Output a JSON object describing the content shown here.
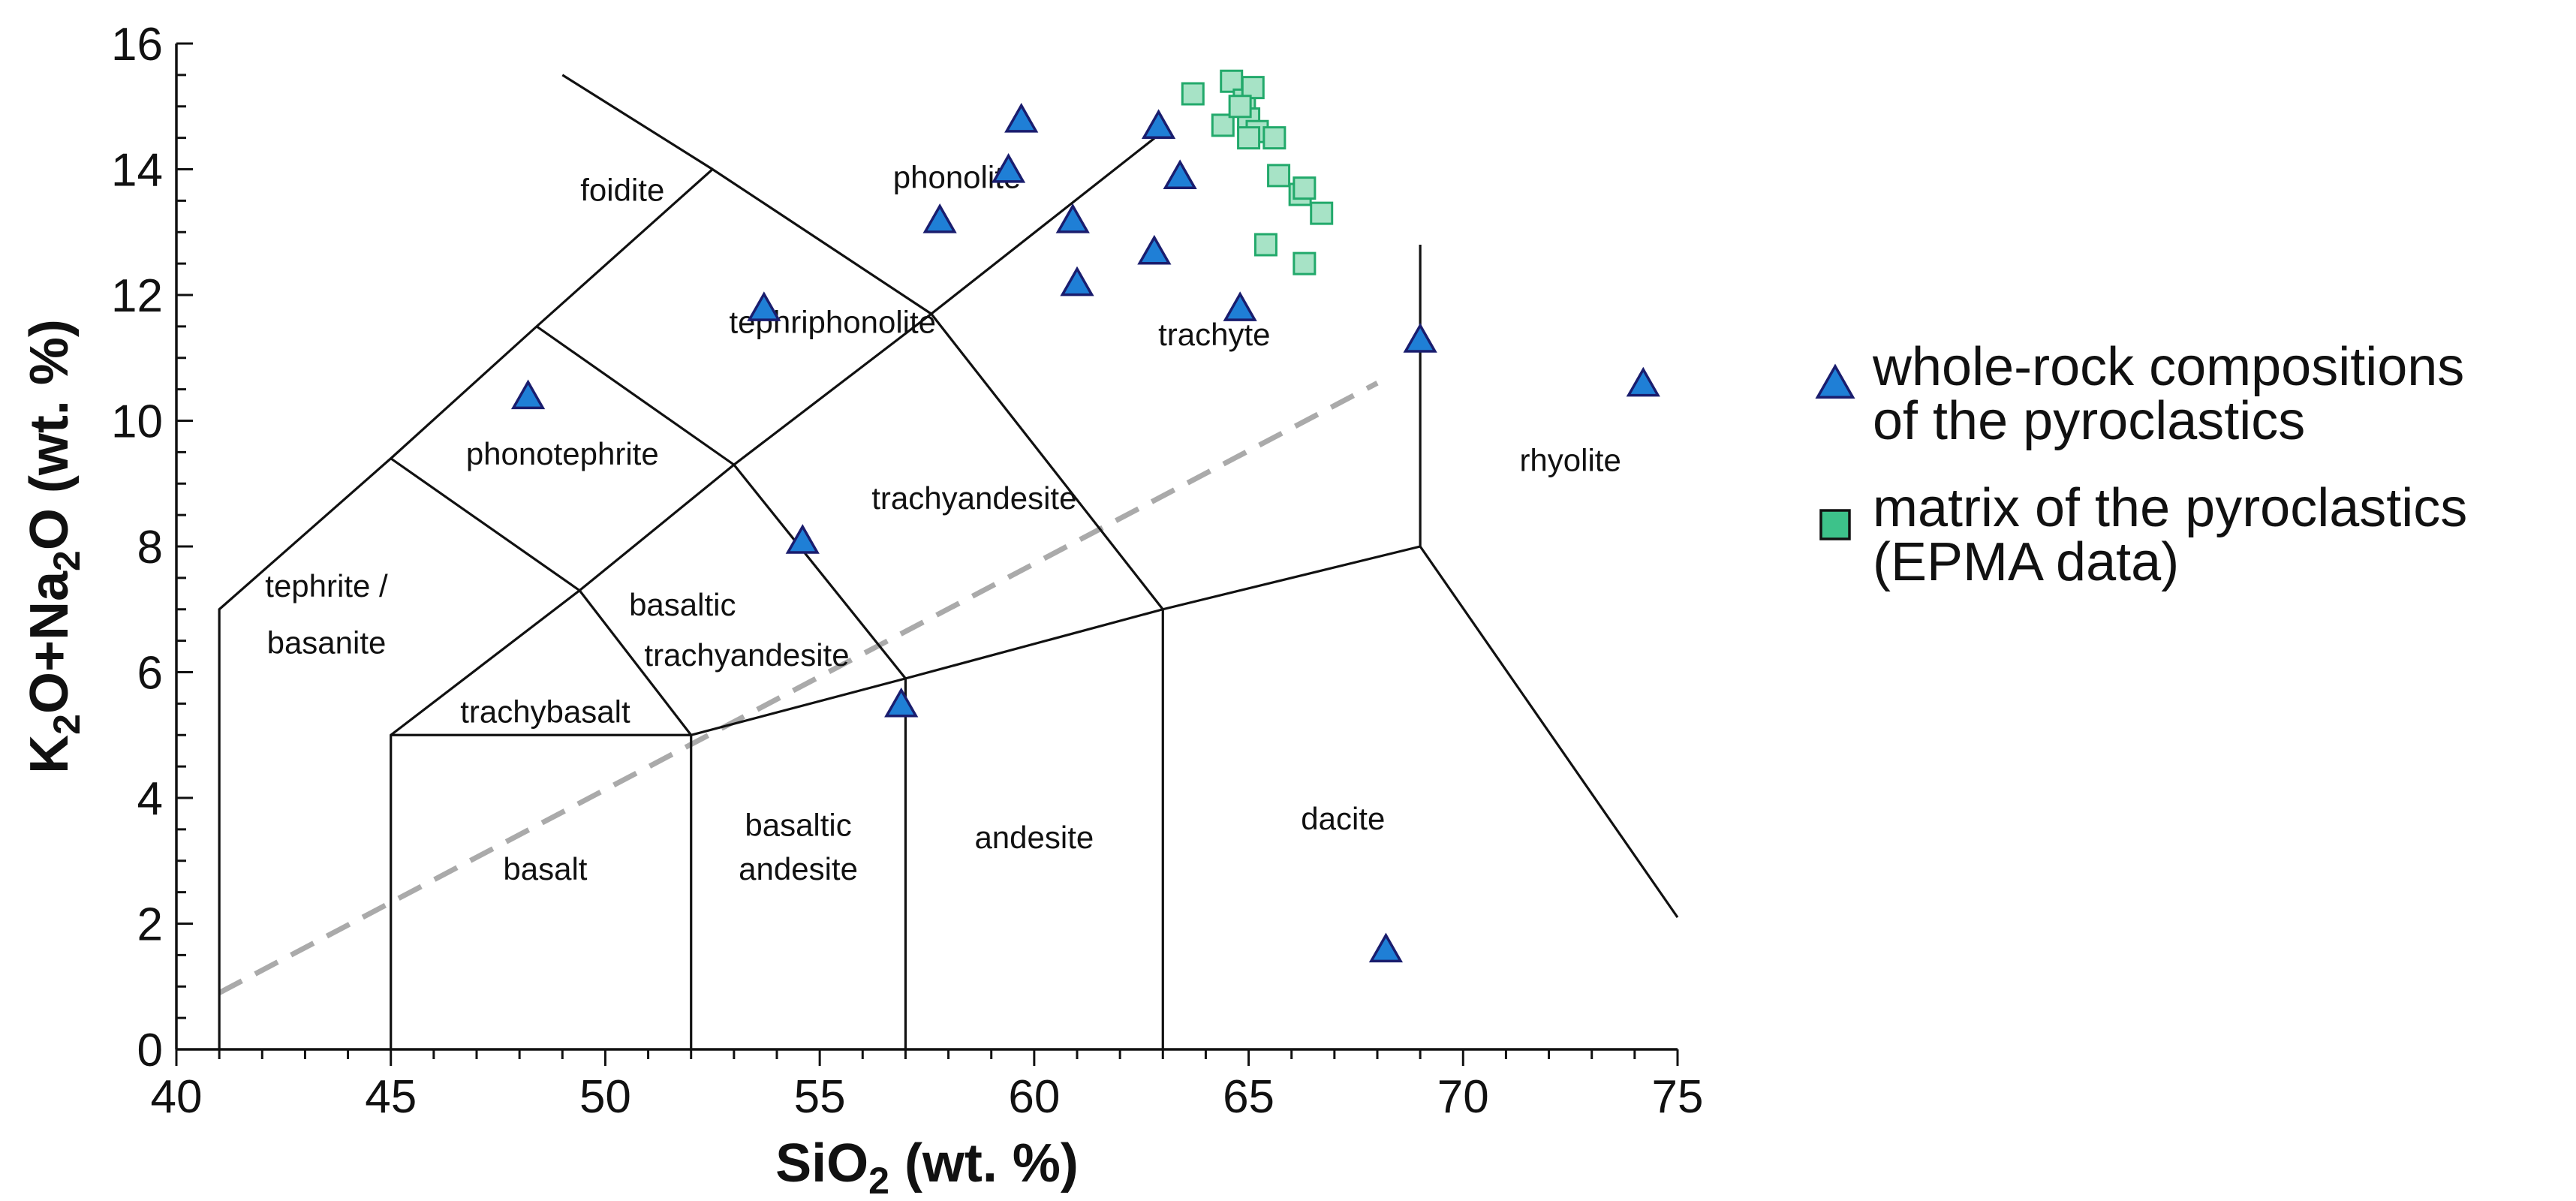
{
  "chart_data": {
    "type": "scatter",
    "title": "",
    "xlabel_main": "SiO",
    "xlabel_sub": "2",
    "xlabel_rest": " (wt. %)",
    "ylabel_parts": [
      {
        "t": "K",
        "sub": false
      },
      {
        "t": "2",
        "sub": true
      },
      {
        "t": "O+Na",
        "sub": false
      },
      {
        "t": "2",
        "sub": true
      },
      {
        "t": "O (wt. %)",
        "sub": false
      }
    ],
    "xlim": [
      40,
      75
    ],
    "ylim": [
      0,
      16
    ],
    "xticks": [
      40,
      45,
      50,
      55,
      60,
      65,
      70,
      75
    ],
    "yticks": [
      0,
      2,
      4,
      6,
      8,
      10,
      12,
      14,
      16
    ],
    "grid": false,
    "tas_boundaries": [
      [
        [
          41,
          0
        ],
        [
          41,
          7
        ],
        [
          45,
          9.4
        ],
        [
          48.4,
          11.5
        ],
        [
          52.5,
          14
        ],
        [
          57.6,
          11.7
        ],
        [
          63,
          7
        ]
      ],
      [
        [
          45,
          0
        ],
        [
          45,
          5
        ],
        [
          49.4,
          7.3
        ],
        [
          53,
          9.3
        ],
        [
          57.6,
          11.7
        ]
      ],
      [
        [
          45,
          5
        ],
        [
          52,
          5
        ],
        [
          57,
          5.9
        ],
        [
          63,
          7
        ],
        [
          69,
          8
        ]
      ],
      [
        [
          52,
          0
        ],
        [
          52,
          5
        ]
      ],
      [
        [
          57,
          0
        ],
        [
          57,
          5.9
        ]
      ],
      [
        [
          63,
          0
        ],
        [
          63,
          7
        ]
      ],
      [
        [
          49.4,
          7.3
        ],
        [
          52,
          5
        ]
      ],
      [
        [
          53,
          9.3
        ],
        [
          57,
          5.9
        ]
      ],
      [
        [
          45,
          9.4
        ],
        [
          49.4,
          7.3
        ]
      ],
      [
        [
          48.4,
          11.5
        ],
        [
          53,
          9.3
        ]
      ],
      [
        [
          57.6,
          11.7
        ],
        [
          63,
          14.6
        ]
      ],
      [
        [
          52.5,
          14
        ],
        [
          49,
          15.5
        ]
      ],
      [
        [
          69,
          12.8
        ],
        [
          69,
          8
        ],
        [
          75,
          2.1
        ]
      ]
    ],
    "alkaline_divide": [
      [
        41,
        0.9
      ],
      [
        68,
        10.6
      ]
    ],
    "field_labels": [
      {
        "text": "foidite",
        "x": 50.4,
        "y": 13.5
      },
      {
        "text": "phonolite",
        "x": 58.2,
        "y": 13.7
      },
      {
        "text": "tephriphonolite",
        "x": 55.3,
        "y": 11.4
      },
      {
        "text": "trachyte",
        "x": 64.2,
        "y": 11.2
      },
      {
        "text": "phonotephrite",
        "x": 49,
        "y": 9.3
      },
      {
        "text": "trachyandesite",
        "x": 58.6,
        "y": 8.6
      },
      {
        "text": "rhyolite",
        "x": 72.5,
        "y": 9.2
      },
      {
        "text": "tephrite /",
        "x": 43.5,
        "y": 7.2
      },
      {
        "text": "basanite",
        "x": 43.5,
        "y": 6.3
      },
      {
        "text": "basaltic",
        "x": 51.8,
        "y": 6.9
      },
      {
        "text": "trachyandesite",
        "x": 53.3,
        "y": 6.1
      },
      {
        "text": "trachybasalt",
        "x": 48.6,
        "y": 5.2
      },
      {
        "text": "basaltic",
        "x": 54.5,
        "y": 3.4
      },
      {
        "text": "andesite",
        "x": 54.5,
        "y": 2.7
      },
      {
        "text": "andesite",
        "x": 60,
        "y": 3.2
      },
      {
        "text": "dacite",
        "x": 67.2,
        "y": 3.5
      },
      {
        "text": "basalt",
        "x": 48.6,
        "y": 2.7
      }
    ],
    "series": [
      {
        "name": "whole-rock compositions of the pyroclastics",
        "marker": "triangle",
        "color": "#1f7fd6",
        "points": [
          [
            48.2,
            10.4
          ],
          [
            53.7,
            11.8
          ],
          [
            54.6,
            8.1
          ],
          [
            56.9,
            5.5
          ],
          [
            57.8,
            13.2
          ],
          [
            59.4,
            14.0
          ],
          [
            59.7,
            14.8
          ],
          [
            60.9,
            13.2
          ],
          [
            61.0,
            12.2
          ],
          [
            62.8,
            12.7
          ],
          [
            62.9,
            14.7
          ],
          [
            63.4,
            13.9
          ],
          [
            64.8,
            11.8
          ],
          [
            68.2,
            1.6
          ],
          [
            69.0,
            11.3
          ],
          [
            74.2,
            10.6
          ]
        ]
      },
      {
        "name": "matrix of the pyroclastics (EPMA data)",
        "marker": "square",
        "color": "#3dc28a",
        "points": [
          [
            63.7,
            15.2
          ],
          [
            64.4,
            14.7
          ],
          [
            64.6,
            15.4
          ],
          [
            64.9,
            15.1
          ],
          [
            65.1,
            15.3
          ],
          [
            65.0,
            14.8
          ],
          [
            64.8,
            15.0
          ],
          [
            65.2,
            14.6
          ],
          [
            65.0,
            14.5
          ],
          [
            65.6,
            14.5
          ],
          [
            65.7,
            13.9
          ],
          [
            66.2,
            13.6
          ],
          [
            66.3,
            13.7
          ],
          [
            66.7,
            13.3
          ],
          [
            65.4,
            12.8
          ],
          [
            66.3,
            12.5
          ]
        ]
      }
    ],
    "legend": {
      "position": "right",
      "entries": [
        {
          "marker": "triangle",
          "line1": "whole-rock compositions",
          "line2": "of the pyroclastics"
        },
        {
          "marker": "square",
          "line1": "matrix of the pyroclastics",
          "line2": "(EPMA data)"
        }
      ]
    }
  }
}
